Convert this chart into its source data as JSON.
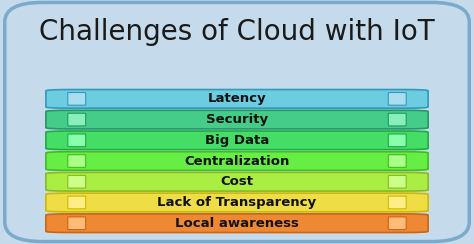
{
  "title": "Challenges of Cloud with IoT",
  "title_fontsize": 20,
  "title_color": "#1a1a1a",
  "background_color": "#c5daea",
  "border_color": "#7aaacc",
  "bars": [
    {
      "label": "Latency",
      "color": "#6ccce0",
      "border": "#3399bb",
      "grad_light": "#aadeee"
    },
    {
      "label": "Security",
      "color": "#44cc88",
      "border": "#229966",
      "grad_light": "#88eebb"
    },
    {
      "label": "Big Data",
      "color": "#44dd66",
      "border": "#22aa44",
      "grad_light": "#88ffaa"
    },
    {
      "label": "Centralization",
      "color": "#66ee44",
      "border": "#44bb22",
      "grad_light": "#aaff88"
    },
    {
      "label": "Cost",
      "color": "#aaee44",
      "border": "#88bb22",
      "grad_light": "#ccff88"
    },
    {
      "label": "Lack of Transparency",
      "color": "#eedd44",
      "border": "#ccbb00",
      "grad_light": "#ffee88"
    },
    {
      "label": "Local awareness",
      "color": "#ee8833",
      "border": "#cc6611",
      "grad_light": "#ffbb77"
    }
  ],
  "bar_height": 0.78,
  "label_fontsize": 9.5,
  "label_fontweight": "bold",
  "label_color": "#111111",
  "fig_width": 4.74,
  "fig_height": 2.44,
  "dpi": 100
}
